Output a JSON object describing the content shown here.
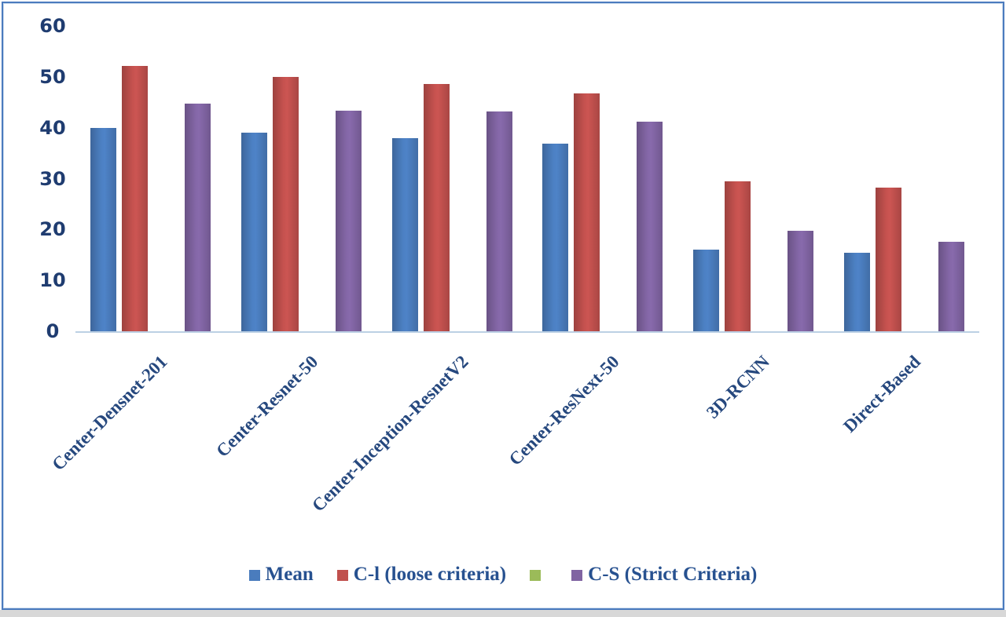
{
  "page": {
    "background": "#ffffff",
    "frame_border_color": "#4b7bbe",
    "bottom_strip_color": "#d8d8d8",
    "axis_line_color": "#bcd0e4",
    "tick_text_color": "#1f3c70",
    "label_text_color": "#26487e"
  },
  "chart_data": {
    "type": "bar",
    "title": "",
    "xlabel": "",
    "ylabel": "",
    "categories": [
      "Center-Densnet-201",
      "Center-Resnet-50",
      "Center-Inception-ResnetV2",
      "Center-ResNext-50",
      "3D-RCNN",
      "Direct-Based"
    ],
    "series": [
      {
        "name": "Mean",
        "color": "#4a7cbd",
        "values": [
          40.0,
          39.0,
          38.0,
          36.8,
          16.1,
          15.4
        ]
      },
      {
        "name": "C-l (loose criteria)",
        "color": "#c0504d",
        "values": [
          52.2,
          50.0,
          48.6,
          46.7,
          29.4,
          28.3
        ]
      },
      {
        "name": "",
        "color": "#9bbb59",
        "values": [
          0,
          0,
          0,
          0,
          0,
          0
        ]
      },
      {
        "name": "C-S (Strict Criteria)",
        "color": "#8064a2",
        "values": [
          44.7,
          43.3,
          43.2,
          41.2,
          19.8,
          17.6
        ]
      }
    ],
    "ylim": [
      0,
      60
    ],
    "yticks": [
      60,
      50,
      40,
      30,
      20,
      10,
      0
    ],
    "grid": false,
    "legend_position": "bottom"
  }
}
